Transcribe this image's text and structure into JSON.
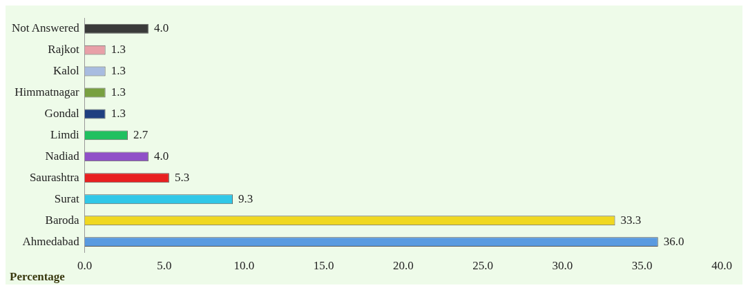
{
  "chart_data": {
    "type": "bar",
    "orientation": "horizontal",
    "xlabel": "Percentage",
    "categories": [
      "Not Answered",
      "Rajkot",
      "Kalol",
      "Himmatnagar",
      "Gondal",
      "Limdi",
      "Nadiad",
      "Saurashtra",
      "Surat",
      "Baroda",
      "Ahmedabad"
    ],
    "values": [
      4.0,
      1.3,
      1.3,
      1.3,
      1.3,
      2.7,
      4.0,
      5.3,
      9.3,
      33.3,
      36.0
    ],
    "value_labels": [
      "4.0",
      "1.3",
      "1.3",
      "1.3",
      "1.3",
      "2.7",
      "4.0",
      "5.3",
      "9.3",
      "33.3",
      "36.0"
    ],
    "colors": [
      "#3a3a3a",
      "#e8a0a8",
      "#a8bce0",
      "#78a040",
      "#1f3f80",
      "#20c060",
      "#9050c8",
      "#e82020",
      "#30c8e8",
      "#f0d820",
      "#5a9ae0"
    ],
    "xlim": [
      0,
      40
    ],
    "xticks": [
      {
        "value": 0,
        "label": "0.0"
      },
      {
        "value": 5,
        "label": "5.0"
      },
      {
        "value": 10,
        "label": "10.0"
      },
      {
        "value": 15,
        "label": "15.0"
      },
      {
        "value": 20,
        "label": "20.0"
      },
      {
        "value": 25,
        "label": "25.0"
      },
      {
        "value": 30,
        "label": "30.0"
      },
      {
        "value": 35,
        "label": "35.0"
      },
      {
        "value": 40,
        "label": "40.0"
      }
    ],
    "grid": false,
    "legend": false
  }
}
